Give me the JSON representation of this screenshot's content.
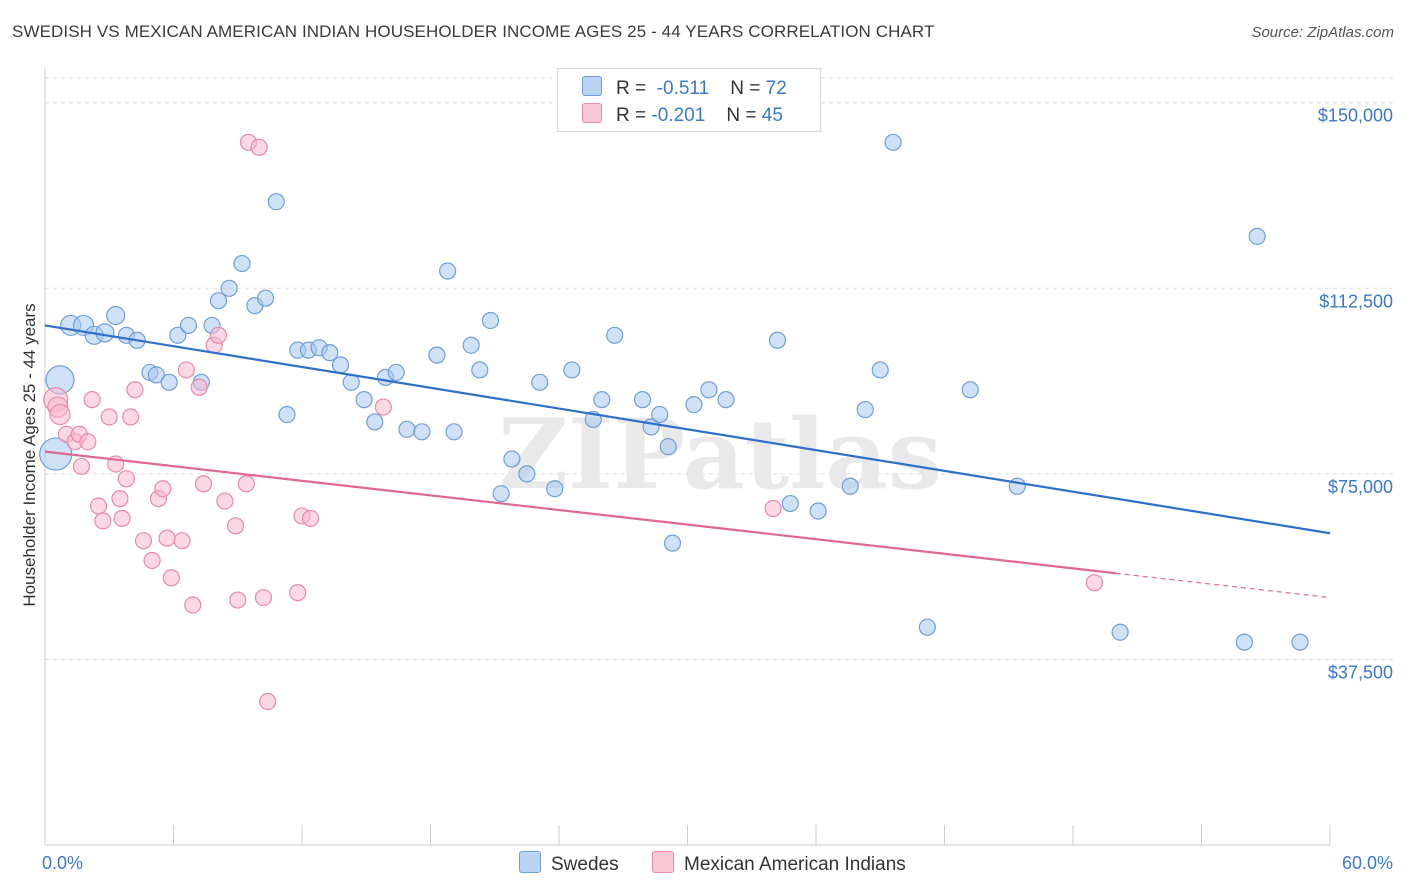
{
  "title": "SWEDISH VS MEXICAN AMERICAN INDIAN HOUSEHOLDER INCOME AGES 25 - 44 YEARS CORRELATION CHART",
  "source": "Source: ZipAtlas.com",
  "watermark": "ZIPatlas",
  "colors": {
    "swedes_fill": "#a8c8f0",
    "swedes_stroke": "#6f9fd8",
    "swedes_line": "#2f6fcc",
    "mexican_fill": "#f7b8cc",
    "mexican_stroke": "#e88aa8",
    "mexican_line": "#e06890",
    "tick_label": "#3a78d0",
    "grid": "#dddddd"
  },
  "legend": {
    "rows": [
      {
        "r_label": "R =",
        "r_value": "-0.511",
        "n_label": "N =",
        "n_value": "72"
      },
      {
        "r_label": "R =",
        "r_value": "-0.201",
        "n_label": "N =",
        "n_value": "45"
      }
    ]
  },
  "bottom_legend": [
    "Swedes",
    "Mexican American Indians"
  ],
  "chart_data": {
    "type": "scatter",
    "ylabel": "Householder Income Ages 25 - 44 years",
    "xlim": [
      0,
      60
    ],
    "ylim": [
      0,
      155000
    ],
    "x_tick_labels": [
      "0.0%",
      "60.0%"
    ],
    "y_ticks": [
      37500,
      75000,
      112500,
      150000
    ],
    "y_tick_labels": [
      "$37,500",
      "$75,000",
      "$112,500",
      "$150,000"
    ],
    "grid": true,
    "series": [
      {
        "name": "Swedes",
        "trend": {
          "x": [
            0,
            60
          ],
          "y": [
            105000,
            63000
          ],
          "dashed_from": null
        },
        "points": [
          [
            0.7,
            94000,
            14
          ],
          [
            0.5,
            79000,
            16
          ],
          [
            1.2,
            105000,
            10
          ],
          [
            1.8,
            105000,
            10
          ],
          [
            2.3,
            103000,
            9
          ],
          [
            2.8,
            103500,
            9
          ],
          [
            3.3,
            107000,
            9
          ],
          [
            3.8,
            103000,
            8
          ],
          [
            4.3,
            102000,
            8
          ],
          [
            4.9,
            95500,
            8
          ],
          [
            5.2,
            95000,
            8
          ],
          [
            5.8,
            93500,
            8
          ],
          [
            6.2,
            103000,
            8
          ],
          [
            6.7,
            105000,
            8
          ],
          [
            7.3,
            93500,
            8
          ],
          [
            7.8,
            105000,
            8
          ],
          [
            8.1,
            110000,
            8
          ],
          [
            8.6,
            112500,
            8
          ],
          [
            9.2,
            117500,
            8
          ],
          [
            9.8,
            109000,
            8
          ],
          [
            10.3,
            110500,
            8
          ],
          [
            10.8,
            130000,
            8
          ],
          [
            11.3,
            87000,
            8
          ],
          [
            11.8,
            100000,
            8
          ],
          [
            12.3,
            100000,
            8
          ],
          [
            12.8,
            100500,
            8
          ],
          [
            13.3,
            99500,
            8
          ],
          [
            13.8,
            97000,
            8
          ],
          [
            14.3,
            93500,
            8
          ],
          [
            14.9,
            90000,
            8
          ],
          [
            15.4,
            85500,
            8
          ],
          [
            15.9,
            94500,
            8
          ],
          [
            16.4,
            95500,
            8
          ],
          [
            16.9,
            84000,
            8
          ],
          [
            17.6,
            83500,
            8
          ],
          [
            18.3,
            99000,
            8
          ],
          [
            18.8,
            116000,
            8
          ],
          [
            19.1,
            83500,
            8
          ],
          [
            19.9,
            101000,
            8
          ],
          [
            20.3,
            96000,
            8
          ],
          [
            20.8,
            106000,
            8
          ],
          [
            21.3,
            71000,
            8
          ],
          [
            21.8,
            78000,
            8
          ],
          [
            22.5,
            75000,
            8
          ],
          [
            23.1,
            93500,
            8
          ],
          [
            23.8,
            72000,
            8
          ],
          [
            24.6,
            96000,
            8
          ],
          [
            25.6,
            86000,
            8
          ],
          [
            26.0,
            90000,
            8
          ],
          [
            26.6,
            103000,
            8
          ],
          [
            27.9,
            90000,
            8
          ],
          [
            28.3,
            84500,
            8
          ],
          [
            28.7,
            87000,
            8
          ],
          [
            29.1,
            80500,
            8
          ],
          [
            29.3,
            61000,
            8
          ],
          [
            30.3,
            89000,
            8
          ],
          [
            31.0,
            92000,
            8
          ],
          [
            31.8,
            90000,
            8
          ],
          [
            34.2,
            102000,
            8
          ],
          [
            34.8,
            69000,
            8
          ],
          [
            36.1,
            67500,
            8
          ],
          [
            37.6,
            72500,
            8
          ],
          [
            38.3,
            88000,
            8
          ],
          [
            39.0,
            96000,
            8
          ],
          [
            39.6,
            142000,
            8
          ],
          [
            41.2,
            44000,
            8
          ],
          [
            43.2,
            92000,
            8
          ],
          [
            45.4,
            72500,
            8
          ],
          [
            50.2,
            43000,
            8
          ],
          [
            56.0,
            41000,
            8
          ],
          [
            56.6,
            123000,
            8
          ],
          [
            58.6,
            41000,
            8
          ]
        ]
      },
      {
        "name": "Mexican American Indians",
        "trend": {
          "x": [
            0,
            60
          ],
          "y": [
            79500,
            50000
          ],
          "dashed_from": 50
        },
        "points": [
          [
            0.5,
            90000,
            12
          ],
          [
            0.6,
            88500,
            10
          ],
          [
            0.7,
            87000,
            10
          ],
          [
            1.0,
            83000,
            8
          ],
          [
            1.4,
            81500,
            8
          ],
          [
            1.6,
            83000,
            8
          ],
          [
            1.7,
            76500,
            8
          ],
          [
            2.0,
            81500,
            8
          ],
          [
            2.2,
            90000,
            8
          ],
          [
            2.5,
            68500,
            8
          ],
          [
            2.7,
            65500,
            8
          ],
          [
            3.0,
            86500,
            8
          ],
          [
            3.3,
            77000,
            8
          ],
          [
            3.5,
            70000,
            8
          ],
          [
            3.6,
            66000,
            8
          ],
          [
            3.8,
            74000,
            8
          ],
          [
            4.0,
            86500,
            8
          ],
          [
            4.2,
            92000,
            8
          ],
          [
            4.6,
            61500,
            8
          ],
          [
            5.0,
            57500,
            8
          ],
          [
            5.3,
            70000,
            8
          ],
          [
            5.5,
            72000,
            8
          ],
          [
            5.7,
            62000,
            8
          ],
          [
            5.9,
            54000,
            8
          ],
          [
            6.4,
            61500,
            8
          ],
          [
            6.6,
            96000,
            8
          ],
          [
            6.9,
            48500,
            8
          ],
          [
            7.2,
            92500,
            8
          ],
          [
            7.4,
            73000,
            8
          ],
          [
            7.9,
            101000,
            8
          ],
          [
            8.1,
            103000,
            8
          ],
          [
            8.4,
            69500,
            8
          ],
          [
            8.9,
            64500,
            8
          ],
          [
            9.0,
            49500,
            8
          ],
          [
            9.4,
            73000,
            8
          ],
          [
            9.5,
            142000,
            8
          ],
          [
            10.0,
            141000,
            8
          ],
          [
            10.2,
            50000,
            8
          ],
          [
            10.4,
            29000,
            8
          ],
          [
            11.8,
            51000,
            8
          ],
          [
            12.0,
            66500,
            8
          ],
          [
            12.4,
            66000,
            8
          ],
          [
            15.8,
            88500,
            8
          ],
          [
            34.0,
            68000,
            8
          ],
          [
            49.0,
            53000,
            8
          ]
        ]
      }
    ]
  }
}
